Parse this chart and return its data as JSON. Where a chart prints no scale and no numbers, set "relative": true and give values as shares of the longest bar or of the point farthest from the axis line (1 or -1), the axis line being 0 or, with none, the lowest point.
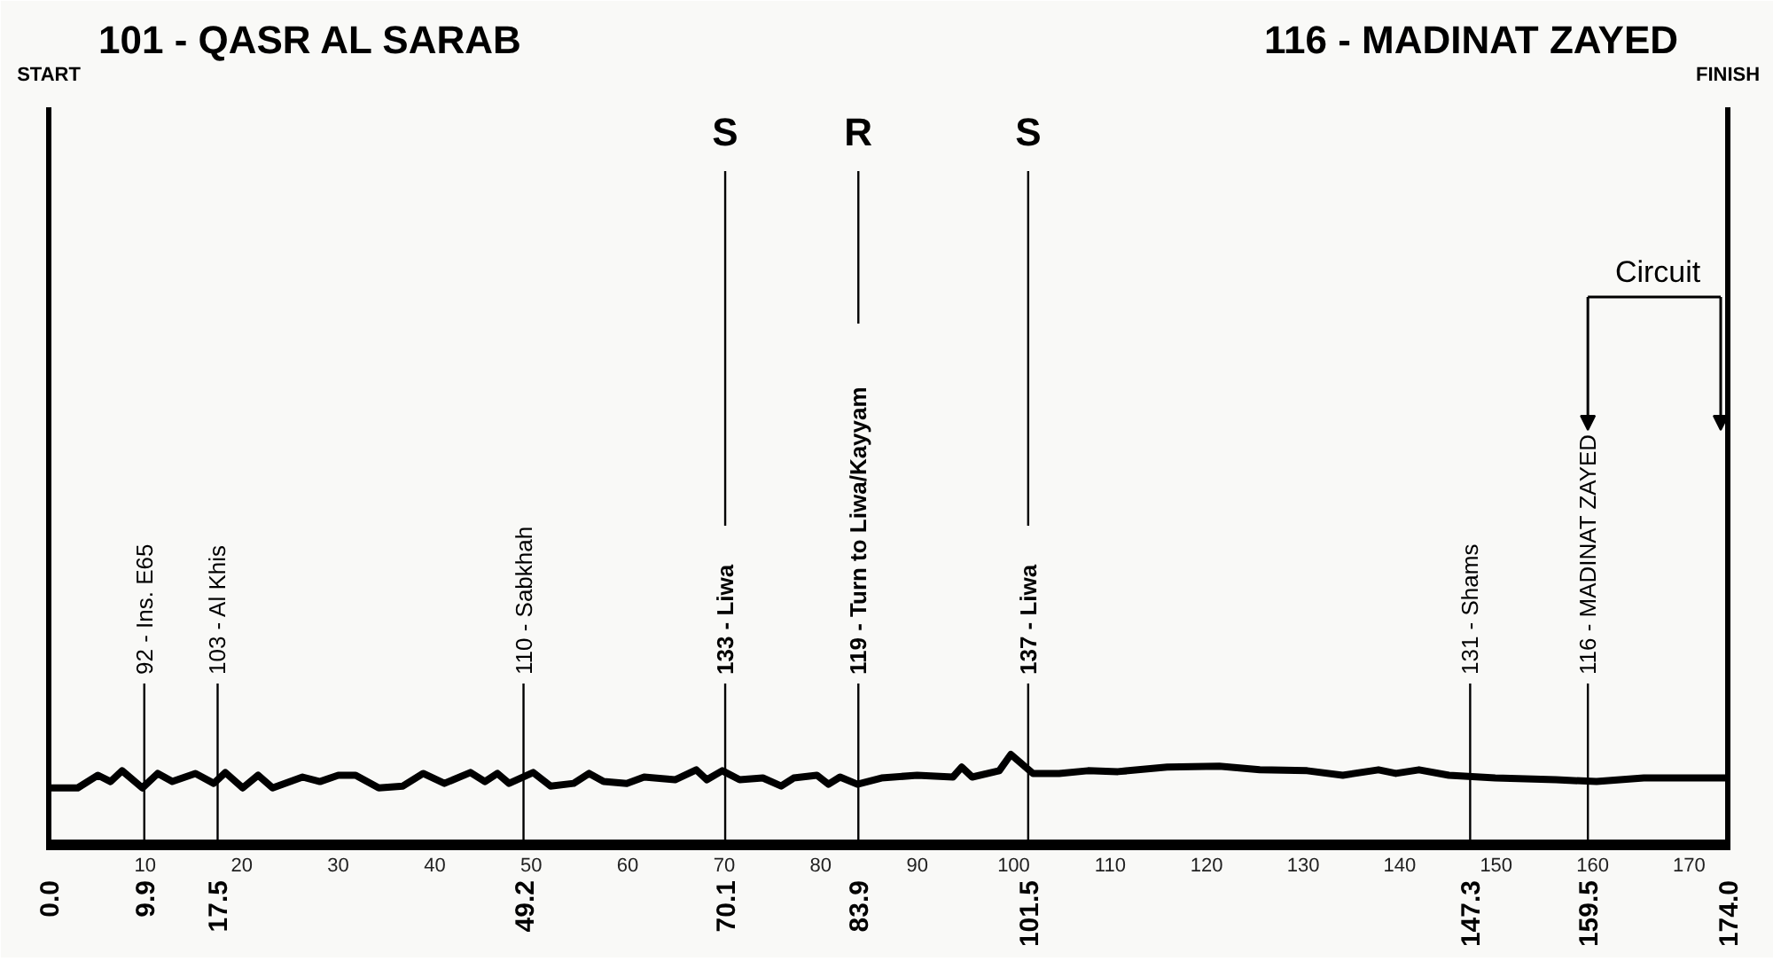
{
  "chart_data": {
    "type": "line",
    "relative": true,
    "line_style": "solid",
    "x": [
      0,
      3,
      5.1,
      6.4,
      7.6,
      9.7,
      11.3,
      12.8,
      15.2,
      17.1,
      18.3,
      20.1,
      21.7,
      23.2,
      26.3,
      28.1,
      30,
      31.8,
      34.2,
      36.7,
      38.8,
      41,
      43.7,
      45.2,
      46.5,
      47.7,
      50.2,
      52,
      54.4,
      56,
      57.5,
      59.9,
      61.7,
      64.9,
      67.1,
      68.2,
      69.8,
      71.6,
      74,
      75.9,
      77.2,
      79.6,
      80.8,
      82,
      83.8,
      86.3,
      90,
      93.7,
      94.6,
      95.7,
      98.5,
      99.7,
      102,
      104.7,
      107.7,
      110.8,
      115.9,
      121.3,
      125.5,
      130.4,
      134.1,
      137.8,
      139.6,
      142,
      145.1,
      149.9,
      156.2,
      160.4,
      165.3,
      171.4,
      174
    ],
    "series": [
      {
        "color": "#000000",
        "values": [
          0.63,
          0.63,
          0.77,
          0.7,
          0.82,
          0.63,
          0.79,
          0.7,
          0.79,
          0.68,
          0.8,
          0.63,
          0.77,
          0.63,
          0.75,
          0.7,
          0.77,
          0.77,
          0.63,
          0.65,
          0.79,
          0.68,
          0.8,
          0.7,
          0.79,
          0.68,
          0.8,
          0.65,
          0.68,
          0.79,
          0.7,
          0.68,
          0.75,
          0.72,
          0.83,
          0.72,
          0.82,
          0.72,
          0.74,
          0.65,
          0.74,
          0.77,
          0.67,
          0.75,
          0.67,
          0.74,
          0.77,
          0.75,
          0.86,
          0.75,
          0.82,
          1,
          0.79,
          0.79,
          0.82,
          0.81,
          0.86,
          0.87,
          0.83,
          0.82,
          0.77,
          0.83,
          0.79,
          0.83,
          0.77,
          0.74,
          0.72,
          0.7,
          0.74,
          0.74,
          0.74
        ]
      }
    ],
    "xlim": [
      0,
      174
    ],
    "xticks": [
      10,
      20,
      30,
      40,
      50,
      60,
      70,
      80,
      90,
      100,
      110,
      120,
      130,
      140,
      150,
      160,
      170
    ],
    "x2lim": [
      0,
      174
    ],
    "x2ticks": [
      {
        "value": 0,
        "label": "0.0"
      },
      9.9,
      17.5,
      49.2,
      70.1,
      83.9,
      101.5,
      147.3,
      159.5,
      {
        "value": 174,
        "label": "174.0"
      }
    ],
    "ref_lines": [
      {
        "axis": "x",
        "value": 0,
        "label": "101 - QASR AL SARAB"
      },
      {
        "axis": "x",
        "value": 9.9,
        "label": "92 - Ins. E65"
      },
      {
        "axis": "x",
        "value": 17.5,
        "label": "103 - Al Khis"
      },
      {
        "axis": "x",
        "value": 49.2,
        "label": "110 - Sabkhah"
      },
      {
        "axis": "x",
        "value": 70.1,
        "label": "133 - Liwa"
      },
      {
        "axis": "x",
        "value": 83.9,
        "label": "119 - Turn to Liwa/Kayyam"
      },
      {
        "axis": "x",
        "value": 101.5,
        "label": "137 - Liwa"
      },
      {
        "axis": "x",
        "value": 147.3,
        "label": "131 - Shams"
      },
      {
        "axis": "x",
        "value": 159.5,
        "label": "116 - MADINAT ZAYED"
      },
      {
        "axis": "x",
        "value": 174,
        "label": "116 - MADINAT ZAYED"
      }
    ],
    "annotations": [
      "START",
      {
        "text": "S",
        "x": 70.1
      },
      {
        "text": "R",
        "x": 83.9
      },
      {
        "text": "S",
        "x": 101.5
      },
      "FINISH",
      "Circuit"
    ]
  }
}
